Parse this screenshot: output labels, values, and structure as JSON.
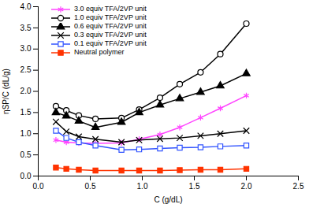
{
  "chart_data": {
    "type": "line",
    "x_label": "C (g/dL)",
    "y_label": "ηSP/C (dL/g)",
    "xlim": [
      0,
      2.5
    ],
    "ylim": [
      0,
      4
    ],
    "xticks": [
      {
        "value": 0,
        "label": "0.0"
      },
      {
        "value": 0.5,
        "label": "0.5"
      },
      {
        "value": 1,
        "label": "1.0"
      },
      {
        "value": 1.5,
        "label": "1.5"
      },
      {
        "value": 2,
        "label": "2.0"
      },
      {
        "value": 2.5,
        "label": "2.5"
      }
    ],
    "yticks": [
      {
        "value": 0,
        "label": "0.0"
      },
      {
        "value": 0.5,
        "label": "0.5"
      },
      {
        "value": 1,
        "label": "1.0"
      },
      {
        "value": 1.5,
        "label": "1.5"
      },
      {
        "value": 2,
        "label": "2.0"
      },
      {
        "value": 2.5,
        "label": "2.5"
      },
      {
        "value": 3,
        "label": "3.0"
      },
      {
        "value": 3.5,
        "label": "3.5"
      },
      {
        "value": 4,
        "label": "4.0"
      }
    ],
    "grid": false,
    "legend": "top-left",
    "x": [
      0.17,
      0.27,
      0.39,
      0.55,
      0.8,
      0.97,
      1.17,
      1.36,
      1.56,
      1.75,
      2.0
    ],
    "series": [
      {
        "name": "3.0 equiv TFA/2VP unit",
        "color": "#ff44ff",
        "marker": "asterisk",
        "values": [
          0.85,
          0.8,
          0.78,
          0.77,
          0.78,
          0.87,
          0.98,
          1.15,
          1.38,
          1.6,
          1.9
        ]
      },
      {
        "name": "1.0 equiv TFA/2VP unit",
        "color": "#000000",
        "marker": "circle-open",
        "values": [
          1.65,
          1.55,
          1.43,
          1.35,
          1.37,
          1.57,
          1.85,
          2.17,
          2.45,
          2.88,
          3.6
        ]
      },
      {
        "name": "0.6 equiv TFA/2VP unit",
        "color": "#000000",
        "marker": "triangle",
        "values": [
          1.5,
          1.42,
          1.3,
          1.15,
          1.27,
          1.5,
          1.68,
          1.83,
          1.98,
          2.13,
          2.42
        ]
      },
      {
        "name": "0.3 equiv TFA/2VP unit",
        "color": "#000000",
        "marker": "times",
        "values": [
          1.28,
          1.05,
          0.93,
          0.87,
          0.8,
          0.85,
          0.88,
          0.9,
          0.95,
          1.0,
          1.07
        ]
      },
      {
        "name": "0.1 equiv TFA/2VP unit",
        "color": "#3355ff",
        "marker": "square-open",
        "values": [
          1.07,
          0.9,
          0.8,
          0.72,
          0.62,
          0.63,
          0.65,
          0.67,
          0.68,
          0.7,
          0.72
        ]
      },
      {
        "name": "Neutral polymer",
        "color": "#ff3300",
        "marker": "square",
        "values": [
          0.2,
          0.17,
          0.15,
          0.13,
          0.13,
          0.13,
          0.13,
          0.14,
          0.15,
          0.15,
          0.17
        ]
      }
    ]
  }
}
